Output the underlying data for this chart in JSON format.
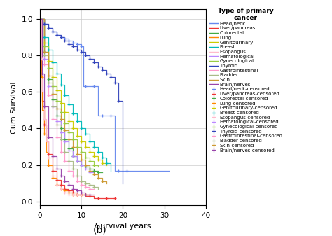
{
  "title": "Type of primary\ncancer",
  "xlabel": "Survival years",
  "ylabel": "Cum Survival",
  "xlim": [
    0,
    40
  ],
  "ylim": [
    -0.02,
    1.05
  ],
  "xticks": [
    0,
    10,
    20,
    30,
    40
  ],
  "yticks": [
    0.0,
    0.2,
    0.4,
    0.6,
    0.8,
    1.0
  ],
  "subtitle": "(b)",
  "cancer_types": [
    {
      "name": "Head/neck",
      "color": "#6688EE"
    },
    {
      "name": "Liver/pancreas",
      "color": "#EE3333"
    },
    {
      "name": "Colorectal",
      "color": "#44AA44"
    },
    {
      "name": "Lung",
      "color": "#FF8800"
    },
    {
      "name": "Genitourinary",
      "color": "#CCCC00"
    },
    {
      "name": "Breast",
      "color": "#00BBBB"
    },
    {
      "name": "Esopahgus",
      "color": "#FFBBCC"
    },
    {
      "name": "Hematological",
      "color": "#BB88FF"
    },
    {
      "name": "Gynecological",
      "color": "#99CC44"
    },
    {
      "name": "Thyroid",
      "color": "#3344BB"
    },
    {
      "name": "Gastrointestinal",
      "color": "#FF99CC"
    },
    {
      "name": "Bladder",
      "color": "#AABB88"
    },
    {
      "name": "Skin",
      "color": "#CC9933"
    },
    {
      "name": "Brain/nerves",
      "color": "#9944AA"
    }
  ],
  "curves": {
    "Head/neck": {
      "x": [
        0,
        1,
        2,
        3,
        4,
        5,
        6,
        7,
        8,
        9,
        10,
        10.5,
        11,
        12,
        13,
        14,
        15,
        16,
        17,
        18,
        19,
        20,
        30,
        31
      ],
      "y": [
        1.0,
        0.97,
        0.95,
        0.93,
        0.91,
        0.9,
        0.89,
        0.88,
        0.87,
        0.86,
        0.85,
        0.63,
        0.63,
        0.63,
        0.63,
        0.47,
        0.47,
        0.47,
        0.47,
        0.17,
        0.17,
        0.17,
        0.17,
        0.17
      ]
    },
    "Liver/pancreas": {
      "x": [
        0,
        0.3,
        0.6,
        1,
        1.5,
        2,
        3,
        4,
        5,
        6,
        7,
        8,
        9,
        10,
        11,
        12,
        13,
        14,
        15,
        16,
        17,
        18
      ],
      "y": [
        1.0,
        0.72,
        0.55,
        0.42,
        0.33,
        0.26,
        0.17,
        0.12,
        0.09,
        0.07,
        0.06,
        0.05,
        0.04,
        0.04,
        0.03,
        0.03,
        0.02,
        0.02,
        0.02,
        0.02,
        0.02,
        0.02
      ]
    },
    "Colorectal": {
      "x": [
        0,
        1,
        2,
        3,
        4,
        5,
        6,
        7,
        8,
        9,
        10,
        11,
        12,
        13,
        14,
        15
      ],
      "y": [
        1.0,
        0.82,
        0.67,
        0.56,
        0.47,
        0.4,
        0.34,
        0.29,
        0.25,
        0.22,
        0.2,
        0.19,
        0.18,
        0.17,
        0.16,
        0.16
      ]
    },
    "Lung": {
      "x": [
        0,
        0.3,
        0.6,
        1,
        1.5,
        2,
        3,
        4,
        5,
        6,
        7,
        8,
        9,
        10,
        11,
        12
      ],
      "y": [
        1.0,
        0.68,
        0.5,
        0.37,
        0.27,
        0.2,
        0.13,
        0.09,
        0.07,
        0.06,
        0.05,
        0.04,
        0.04,
        0.04,
        0.04,
        0.04
      ]
    },
    "Genitourinary": {
      "x": [
        0,
        1,
        2,
        3,
        4,
        5,
        6,
        7,
        8,
        9,
        10,
        11,
        12,
        13,
        14,
        15,
        16
      ],
      "y": [
        1.0,
        0.87,
        0.77,
        0.68,
        0.61,
        0.54,
        0.49,
        0.44,
        0.4,
        0.36,
        0.33,
        0.3,
        0.27,
        0.25,
        0.23,
        0.21,
        0.2
      ]
    },
    "Breast": {
      "x": [
        0,
        1,
        2,
        3,
        4,
        5,
        6,
        7,
        8,
        9,
        10,
        11,
        12,
        13,
        14,
        15,
        16,
        17
      ],
      "y": [
        1.0,
        0.9,
        0.83,
        0.76,
        0.7,
        0.64,
        0.58,
        0.53,
        0.48,
        0.44,
        0.4,
        0.37,
        0.33,
        0.3,
        0.27,
        0.24,
        0.21,
        0.17
      ]
    },
    "Esopahgus": {
      "x": [
        0,
        0.3,
        0.6,
        1,
        1.5,
        2,
        3,
        4,
        5,
        6,
        7,
        8,
        9,
        10,
        11
      ],
      "y": [
        1.0,
        0.78,
        0.6,
        0.45,
        0.33,
        0.24,
        0.14,
        0.09,
        0.07,
        0.05,
        0.04,
        0.04,
        0.04,
        0.04,
        0.04
      ]
    },
    "Hematological": {
      "x": [
        0,
        1,
        2,
        3,
        4,
        5,
        6,
        7,
        8,
        9,
        10,
        11,
        12,
        13
      ],
      "y": [
        1.0,
        0.78,
        0.63,
        0.52,
        0.44,
        0.38,
        0.33,
        0.28,
        0.25,
        0.22,
        0.2,
        0.18,
        0.16,
        0.15
      ]
    },
    "Gynecological": {
      "x": [
        0,
        1,
        2,
        3,
        4,
        5,
        6,
        7,
        8,
        9,
        10,
        11,
        12,
        13,
        14
      ],
      "y": [
        1.0,
        0.85,
        0.73,
        0.63,
        0.55,
        0.49,
        0.43,
        0.38,
        0.34,
        0.3,
        0.27,
        0.24,
        0.22,
        0.2,
        0.19
      ]
    },
    "Thyroid": {
      "x": [
        0,
        1,
        2,
        3,
        4,
        5,
        6,
        7,
        8,
        9,
        10,
        11,
        12,
        13,
        14,
        15,
        16,
        17,
        18,
        19,
        20
      ],
      "y": [
        1.0,
        0.97,
        0.95,
        0.93,
        0.91,
        0.9,
        0.88,
        0.86,
        0.85,
        0.83,
        0.82,
        0.8,
        0.78,
        0.76,
        0.74,
        0.72,
        0.7,
        0.68,
        0.65,
        0.55,
        0.1
      ]
    },
    "Gastrointestinal": {
      "x": [
        0,
        1,
        2,
        3,
        4,
        5,
        6,
        7,
        8,
        9,
        10,
        11,
        12,
        13
      ],
      "y": [
        1.0,
        0.75,
        0.58,
        0.45,
        0.35,
        0.27,
        0.22,
        0.17,
        0.14,
        0.11,
        0.09,
        0.08,
        0.07,
        0.07
      ]
    },
    "Bladder": {
      "x": [
        0,
        1,
        2,
        3,
        4,
        5,
        6,
        7,
        8,
        9,
        10,
        11,
        12,
        13,
        14
      ],
      "y": [
        1.0,
        0.8,
        0.65,
        0.52,
        0.42,
        0.34,
        0.27,
        0.22,
        0.18,
        0.14,
        0.11,
        0.1,
        0.09,
        0.08,
        0.07
      ]
    },
    "Skin": {
      "x": [
        0,
        1,
        2,
        3,
        4,
        5,
        6,
        7,
        8,
        9,
        10,
        11,
        12,
        13,
        14,
        15,
        16
      ],
      "y": [
        1.0,
        0.82,
        0.69,
        0.59,
        0.51,
        0.45,
        0.39,
        0.34,
        0.3,
        0.26,
        0.23,
        0.2,
        0.17,
        0.15,
        0.13,
        0.11,
        0.1
      ]
    },
    "Brain/nerves": {
      "x": [
        0,
        0.5,
        1,
        2,
        3,
        4,
        5,
        6,
        7,
        8,
        9,
        10,
        11,
        12,
        13
      ],
      "y": [
        1.0,
        0.7,
        0.52,
        0.35,
        0.25,
        0.18,
        0.14,
        0.11,
        0.09,
        0.07,
        0.06,
        0.05,
        0.04,
        0.04,
        0.04
      ]
    }
  },
  "censored_x": {
    "Head/neck": [
      1,
      2,
      3,
      4,
      5,
      6,
      7,
      8,
      9,
      10,
      11,
      13,
      15,
      17,
      19,
      21
    ],
    "Liver/pancreas": [
      1,
      2,
      3,
      4,
      5,
      6,
      7,
      8,
      9,
      10,
      12,
      14,
      16,
      18
    ],
    "Colorectal": [
      1,
      2,
      3,
      4,
      5,
      6,
      7,
      8,
      9,
      10,
      11,
      12,
      13,
      14
    ],
    "Lung": [
      0.5,
      1,
      2,
      3,
      4,
      5,
      6,
      7,
      8,
      9,
      10,
      11
    ],
    "Genitourinary": [
      1,
      2,
      3,
      4,
      5,
      6,
      7,
      8,
      9,
      10,
      11,
      12,
      13,
      14,
      15
    ],
    "Breast": [
      1,
      2,
      3,
      4,
      5,
      6,
      7,
      8,
      9,
      10,
      11,
      12,
      13,
      14,
      15,
      16
    ],
    "Esopahgus": [
      0.5,
      1,
      2,
      3,
      4,
      5,
      6,
      7,
      8,
      9,
      10
    ],
    "Hematological": [
      1,
      2,
      3,
      4,
      5,
      6,
      7,
      8,
      9,
      10,
      11,
      12
    ],
    "Gynecological": [
      1,
      2,
      3,
      4,
      5,
      6,
      7,
      8,
      9,
      10,
      11,
      12,
      13
    ],
    "Thyroid": [
      1,
      2,
      3,
      4,
      5,
      6,
      7,
      8,
      9,
      10,
      11,
      12,
      13,
      14,
      15,
      16,
      17,
      18,
      19
    ],
    "Gastrointestinal": [
      1,
      2,
      3,
      4,
      5,
      6,
      7,
      8,
      9,
      10,
      11,
      12
    ],
    "Bladder": [
      1,
      2,
      3,
      4,
      5,
      6,
      7,
      8,
      9,
      10,
      11,
      12,
      13
    ],
    "Skin": [
      1,
      2,
      3,
      4,
      5,
      6,
      7,
      8,
      9,
      10,
      11,
      12,
      13,
      14,
      15
    ],
    "Brain/nerves": [
      0.5,
      1,
      2,
      3,
      4,
      5,
      6,
      7,
      8,
      9,
      10,
      11,
      12
    ]
  }
}
